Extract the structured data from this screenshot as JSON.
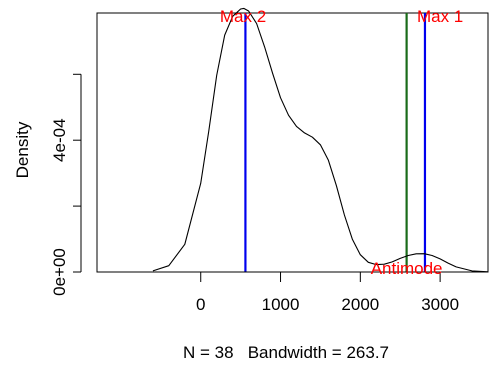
{
  "chart_data": {
    "type": "line",
    "title": "",
    "xlabel": "N = 38   Bandwidth = 263.7",
    "ylabel": "Density",
    "xlim": [
      -1300,
      3600
    ],
    "ylim": [
      0,
      0.000786
    ],
    "x_ticks": [
      0,
      1000,
      2000,
      3000
    ],
    "x_tick_labels": [
      "0",
      "1000",
      "2000",
      "3000"
    ],
    "y_ticks": [
      0,
      0.0002,
      0.0004,
      0.0006
    ],
    "y_tick_labels": [
      "0e+00",
      "",
      "4e-04",
      ""
    ],
    "grid": false,
    "legend": "none",
    "series": [
      {
        "color": "#000000",
        "x": [
          -600,
          -400,
          -200,
          0,
          100,
          200,
          300,
          400,
          500,
          540,
          600,
          700,
          800,
          900,
          1000,
          1100,
          1200,
          1300,
          1400,
          1500,
          1600,
          1700,
          1800,
          1900,
          2000,
          2100,
          2200,
          2300,
          2400,
          2500,
          2600,
          2700,
          2800,
          2900,
          3000,
          3100,
          3200,
          3400,
          3600
        ],
        "y": [
          3.2e-06,
          1.9e-05,
          8.4e-05,
          0.000269,
          0.000426,
          0.000597,
          0.000719,
          0.000776,
          0.000798,
          0.0008,
          0.000792,
          0.000754,
          0.000683,
          0.000603,
          0.000529,
          0.000476,
          0.000442,
          0.000422,
          0.000409,
          0.000386,
          0.000339,
          0.000262,
          0.000173,
          9.99e-05,
          5.24e-05,
          2.95e-05,
          2.25e-05,
          2.38e-05,
          3.08e-05,
          4.12e-05,
          5.02e-05,
          5.52e-05,
          5.55e-05,
          5.02e-05,
          3.98e-05,
          2.71e-05,
          1.56e-05,
          3.2e-06,
          5e-07
        ]
      }
    ],
    "vertical_lines": [
      {
        "x": 560,
        "color": "#0000ee"
      },
      {
        "x": 2580,
        "color": "#1a6b1a"
      },
      {
        "x": 2810,
        "color": "#0000ee"
      }
    ],
    "annotations": [
      {
        "text": "Max 2",
        "x": 530,
        "y": 0.000786,
        "color": "#ff0000"
      },
      {
        "text": "Max 1",
        "x": 3000,
        "y": 0.000786,
        "color": "#ff0000"
      },
      {
        "text": "Antimode",
        "x": 2580,
        "y": 0,
        "color": "#ff0000"
      }
    ]
  }
}
